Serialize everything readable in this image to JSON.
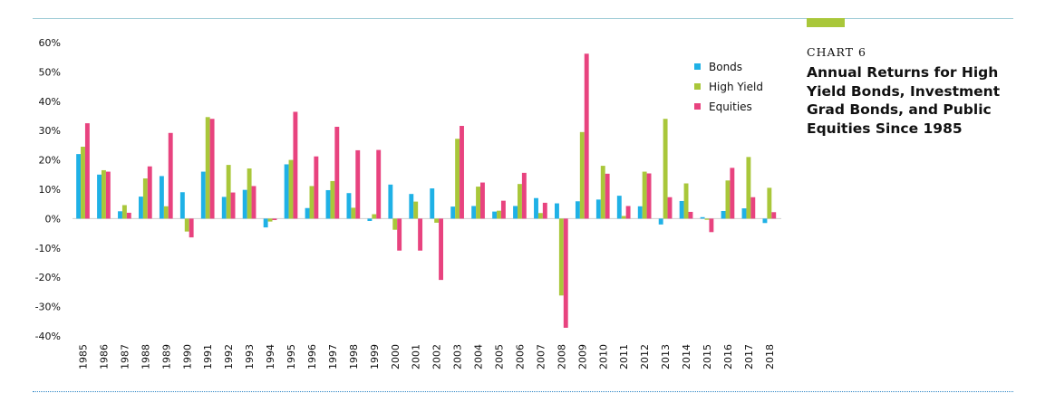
{
  "panel": {
    "kicker": "CHART 6",
    "title": "Annual Returns for High Yield Bonds, Investment Grad Bonds, and Public Equities Since 1985",
    "accent_color": "#a9c73a"
  },
  "chart_data": {
    "type": "bar",
    "title": "",
    "xlabel": "",
    "ylabel": "",
    "ylim": [
      -40,
      60
    ],
    "y_ticks": [
      "60%",
      "50%",
      "40%",
      "30%",
      "20%",
      "10%",
      "0%",
      "-10%",
      "-20%",
      "-30%",
      "-40%"
    ],
    "y_tick_values": [
      60,
      50,
      40,
      30,
      20,
      10,
      0,
      -10,
      -20,
      -30,
      -40
    ],
    "grid": false,
    "legend_position": "top-right",
    "categories": [
      "1985",
      "1986",
      "1987",
      "1988",
      "1989",
      "1990",
      "1991",
      "1992",
      "1993",
      "1994",
      "1995",
      "1996",
      "1997",
      "1998",
      "1999",
      "2000",
      "2001",
      "2002",
      "2003",
      "2004",
      "2005",
      "2006",
      "2007",
      "2008",
      "2009",
      "2010",
      "2011",
      "2012",
      "2013",
      "2014",
      "2015",
      "2016",
      "2017",
      "2018"
    ],
    "series": [
      {
        "name": "Bonds",
        "color": "#1fb1e6",
        "values": [
          22,
          15,
          2.5,
          7.5,
          14.5,
          9,
          16,
          7.4,
          9.8,
          -3,
          18.5,
          3.6,
          9.7,
          8.7,
          -0.8,
          11.6,
          8.4,
          10.3,
          4.1,
          4.3,
          2.4,
          4.3,
          7,
          5.2,
          5.9,
          6.5,
          7.8,
          4.2,
          -2,
          6,
          0.5,
          2.6,
          3.5,
          -1.5
        ]
      },
      {
        "name": "High Yield",
        "color": "#a9c73a",
        "values": [
          24.5,
          16.5,
          4.6,
          13.7,
          4.2,
          -4.4,
          34.6,
          18.3,
          17.1,
          -1,
          20,
          11.1,
          12.8,
          3.7,
          1.5,
          -3.8,
          5.8,
          -1.4,
          27.2,
          10.9,
          2.7,
          11.8,
          1.9,
          -26.2,
          29.5,
          18,
          0.9,
          16,
          34,
          12,
          -0.4,
          13,
          21,
          10.5
        ]
      },
      {
        "name": "Equities",
        "color": "#e8437f",
        "values": [
          32.5,
          16,
          2,
          17.8,
          29.2,
          -6.4,
          34,
          8.9,
          11.1,
          -0.5,
          36.4,
          21.2,
          31.3,
          23.3,
          23.4,
          -10.9,
          -10.9,
          -20.9,
          31.6,
          12.3,
          6.1,
          15.6,
          5.4,
          -37.2,
          56.2,
          15.3,
          4.3,
          15.4,
          7.3,
          2.3,
          -4.6,
          17.3,
          7.3,
          2.2
        ]
      }
    ]
  }
}
